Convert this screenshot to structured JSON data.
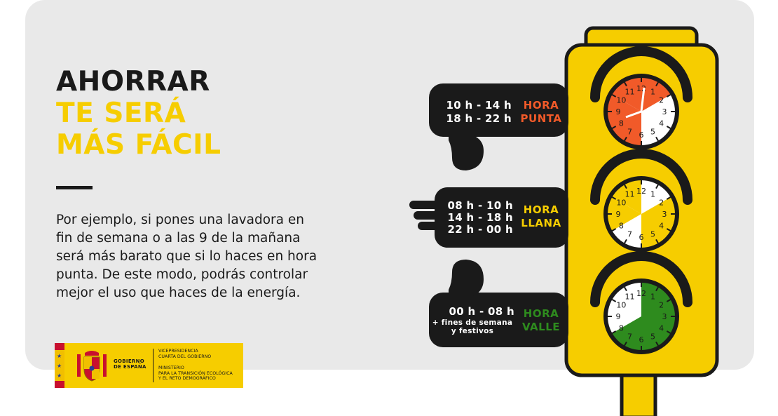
{
  "headline": {
    "line1": "AHORRAR",
    "line2": "TE SERÁ",
    "line3": "MÁS FÁCIL"
  },
  "body": {
    "line1": "Por ejemplo, si pones una lavadora en",
    "line2": "fin de semana o a las 9 de la mañana",
    "line3": "será más barato que si lo haces en hora",
    "line4": "punta. De este modo, podrás controlar",
    "line5": "mejor el uso que haces de la energía."
  },
  "periods": [
    {
      "label_line1": "HORA",
      "label_line2": "PUNTA",
      "color": "#f15a29",
      "hours": [
        "10 h - 14 h",
        "18 h - 22 h"
      ]
    },
    {
      "label_line1": "HORA",
      "label_line2": "LLANA",
      "color": "#f6cd00",
      "hours": [
        "08 h - 10 h",
        "14 h - 18 h",
        "22 h - 00 h"
      ]
    },
    {
      "label_line1": "HORA",
      "label_line2": "VALLE",
      "color": "#2e8b1e",
      "hours": [
        "00 h - 08 h"
      ],
      "extra1": "+ fines de semana",
      "extra2": "y festivos"
    }
  ],
  "clock_numbers": [
    "12",
    "1",
    "2",
    "3",
    "4",
    "5",
    "6",
    "7",
    "8",
    "9",
    "10",
    "11"
  ],
  "logo": {
    "gobierno1": "GOBIERNO",
    "gobierno2": "DE ESPAÑA",
    "vice1": "VICEPRESIDENCIA",
    "vice2": "CUARTA DEL GOBIERNO",
    "min1": "MINISTERIO",
    "min2": "PARA LA TRANSICIÓN ECOLÓGICA",
    "min3": "Y EL RETO DEMOGRÁFICO"
  },
  "colors": {
    "accent": "#f6cd00",
    "dark": "#1a1a1a",
    "background": "#e9e9e9"
  }
}
